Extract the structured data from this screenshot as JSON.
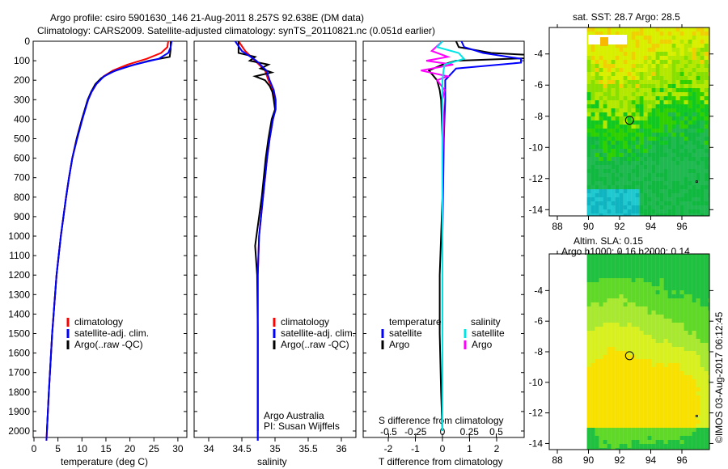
{
  "header": {
    "line1": "Argo profile: csiro 5901630_146 21-Aug-2011 8.257S 92.638E (DM data)",
    "line2": "Climatology: CARS2009. Satellite-adjusted climatology: synTS_20110821.nc (0.051d earlier)"
  },
  "footer_stamp": "©IMOS 03-Aug-2017 06:12:45",
  "colors": {
    "climatology": "#ff0000",
    "satellite": "#0000ff",
    "argo": "#000000",
    "sal_satellite": "#00e5e5",
    "sal_argo": "#ff00ff"
  },
  "chart_data": [
    {
      "type": "line",
      "title": "",
      "xlabel": "temperature (deg C)",
      "ylabel": "",
      "xlim": [
        -1,
        31
      ],
      "ylim": [
        2070,
        0
      ],
      "xticks": [
        "0",
        "5",
        "10",
        "15",
        "20",
        "25",
        "30"
      ],
      "yticks": [
        "0",
        "100",
        "200",
        "300",
        "400",
        "500",
        "600",
        "700",
        "800",
        "900",
        "1000",
        "1100",
        "1200",
        "1300",
        "1400",
        "1500",
        "1600",
        "1700",
        "1800",
        "1900",
        "2000"
      ],
      "legend": [
        "climatology",
        "satellite-adj. clim.",
        "Argo(..raw -QC)"
      ],
      "series": [
        {
          "name": "climatology",
          "depth": [
            0,
            30,
            60,
            90,
            120,
            150,
            180,
            220,
            260,
            300,
            400,
            500,
            600,
            700,
            800,
            1000,
            1200,
            1500,
            1800,
            2000,
            2050
          ],
          "values": [
            28.0,
            27.8,
            26.5,
            23.5,
            19.5,
            16.5,
            14.5,
            13.0,
            12.0,
            11.3,
            10.0,
            8.9,
            8.0,
            7.3,
            6.7,
            5.6,
            4.7,
            3.8,
            3.1,
            2.7,
            2.6
          ]
        },
        {
          "name": "satellite-adj. clim.",
          "depth": [
            0,
            30,
            60,
            90,
            120,
            150,
            180,
            220,
            260,
            300,
            400,
            500,
            600,
            700,
            800,
            1000,
            1200,
            1500,
            1800,
            2000,
            2050
          ],
          "values": [
            28.7,
            28.5,
            28.0,
            26.0,
            21.0,
            17.0,
            14.6,
            13.0,
            12.0,
            11.3,
            10.1,
            9.0,
            8.0,
            7.3,
            6.7,
            5.6,
            4.7,
            3.8,
            3.1,
            2.7,
            2.6
          ]
        },
        {
          "name": "Argo(..raw -QC)",
          "depth": [
            0,
            20,
            40,
            60,
            80,
            100,
            130,
            160,
            190,
            220,
            260,
            300,
            400,
            500,
            600,
            700,
            800,
            1000,
            1200,
            1500,
            1800,
            2000
          ],
          "values": [
            28.5,
            28.5,
            28.5,
            28.4,
            28.3,
            24.0,
            19.5,
            16.0,
            14.0,
            12.8,
            11.9,
            11.2,
            10.0,
            8.9,
            8.0,
            7.3,
            6.7,
            5.6,
            4.7,
            3.8,
            3.1,
            2.7
          ]
        }
      ]
    },
    {
      "type": "line",
      "xlabel": "salinity",
      "xlim": [
        33.7,
        36.1
      ],
      "ylim": [
        2070,
        0
      ],
      "xticks": [
        "34",
        "34.5",
        "35",
        "35.5",
        "36"
      ],
      "legend": [
        "climatology",
        "satellite-adj. clim.",
        "Argo(..raw -QC)"
      ],
      "annotation": [
        "Argo Australia",
        "PI: Susan Wijffels"
      ],
      "series": [
        {
          "name": "climatology",
          "depth": [
            0,
            50,
            100,
            150,
            200,
            250,
            300,
            350,
            400,
            500,
            600,
            800,
            1000,
            1200,
            1500,
            1800,
            2000,
            2050
          ],
          "values": [
            34.45,
            34.55,
            34.7,
            34.85,
            34.9,
            34.97,
            35.0,
            35.0,
            34.97,
            34.92,
            34.88,
            34.82,
            34.76,
            34.74,
            34.74,
            34.74,
            34.74,
            34.74
          ]
        },
        {
          "name": "satellite-adj. clim.",
          "depth": [
            0,
            50,
            100,
            150,
            200,
            250,
            300,
            350,
            400,
            500,
            600,
            800,
            1000,
            1200,
            1500,
            1800,
            2000,
            2050
          ],
          "values": [
            34.4,
            34.5,
            34.72,
            34.87,
            34.92,
            34.98,
            35.01,
            35.01,
            34.97,
            34.92,
            34.88,
            34.82,
            34.76,
            34.74,
            34.74,
            34.74,
            34.74,
            34.74
          ]
        },
        {
          "name": "Argo(..raw -QC)",
          "depth": [
            0,
            60,
            80,
            100,
            120,
            140,
            160,
            180,
            200,
            230,
            260,
            300,
            350,
            400,
            500,
            600,
            800,
            1000,
            1050,
            1200,
            1500,
            1800,
            2000
          ],
          "values": [
            34.45,
            34.45,
            34.7,
            34.62,
            34.9,
            34.78,
            34.95,
            34.7,
            34.85,
            34.92,
            34.96,
            34.98,
            35.0,
            34.95,
            34.9,
            34.86,
            34.8,
            34.72,
            34.7,
            34.73,
            34.74,
            34.74,
            34.74
          ]
        }
      ]
    },
    {
      "type": "line",
      "xlabel": "T difference from climatology",
      "xlabel2": "S difference from climatology",
      "xlim": [
        -2.9,
        3.0
      ],
      "xticks": [
        "-2",
        "-1",
        "0",
        "1",
        "2"
      ],
      "xticks2": [
        "-0.5",
        "-0.25",
        "0",
        "0.25",
        "0.5"
      ],
      "legend_titles": [
        "temperature",
        "salinity"
      ],
      "legend": [
        "satellite",
        "Argo",
        "satellite",
        "Argo"
      ],
      "series": [
        {
          "name": "temperature satellite",
          "depth": [
            0,
            30,
            60,
            90,
            110,
            140,
            200,
            300,
            500,
            1000,
            1500,
            2000
          ],
          "values": [
            0.7,
            0.8,
            1.5,
            2.9,
            2.9,
            0.5,
            0.1,
            0.1,
            0.05,
            0.0,
            0.0,
            0.0
          ]
        },
        {
          "name": "temperature Argo",
          "depth": [
            0,
            30,
            60,
            80,
            100,
            120,
            150,
            200,
            250,
            300,
            500,
            800,
            1000,
            1200,
            1500,
            1800,
            2000
          ],
          "values": [
            0.5,
            0.6,
            1.8,
            4.5,
            0.5,
            0.0,
            -0.5,
            -0.2,
            -0.1,
            -0.05,
            0.0,
            0.0,
            -0.05,
            -0.1,
            -0.1,
            -0.05,
            0.0
          ]
        },
        {
          "name": "salinity satellite",
          "depth": [
            0,
            30,
            60,
            90,
            120,
            150,
            200,
            400,
            800,
            1200,
            1600,
            2000
          ],
          "values": [
            0.0,
            -0.05,
            0.15,
            0.2,
            0.02,
            0.01,
            0.0,
            0.0,
            0.0,
            0.0,
            0.0,
            0.0
          ]
        },
        {
          "name": "salinity Argo",
          "depth": [
            0,
            50,
            80,
            100,
            120,
            150,
            180,
            200,
            250,
            300,
            400,
            600,
            800,
            1000,
            1200,
            1500,
            1800,
            2000
          ],
          "values": [
            0.0,
            -0.1,
            0.05,
            -0.15,
            0.1,
            -0.2,
            0.05,
            -0.05,
            0.02,
            0.0,
            0.01,
            0.0,
            0.0,
            0.0,
            0.0,
            0.0,
            0.0,
            0.0
          ]
        }
      ]
    },
    {
      "type": "heatmap",
      "title": "sat. SST: 28.7 Argo: 28.5",
      "xticks": [
        "88",
        "90",
        "92",
        "94",
        "96"
      ],
      "yticks": [
        "-4",
        "-6",
        "-8",
        "-10",
        "-12",
        "-14"
      ],
      "xlim": [
        87.5,
        97.8
      ],
      "ylim": [
        -14.4,
        -2.3
      ],
      "marker": {
        "lon": 92.638,
        "lat": -8.257
      }
    },
    {
      "type": "heatmap",
      "title": "Altim. SLA: 0.15",
      "subtitle": "Argo h1000: 0.16 h2000: 0.14",
      "xticks": [
        "88",
        "90",
        "92",
        "94",
        "96"
      ],
      "yticks": [
        "-4",
        "-6",
        "-8",
        "-10",
        "-12",
        "-14"
      ],
      "xlim": [
        87.5,
        97.8
      ],
      "ylim": [
        -14.4,
        -1.6
      ],
      "marker": {
        "lon": 92.638,
        "lat": -8.257
      }
    }
  ]
}
